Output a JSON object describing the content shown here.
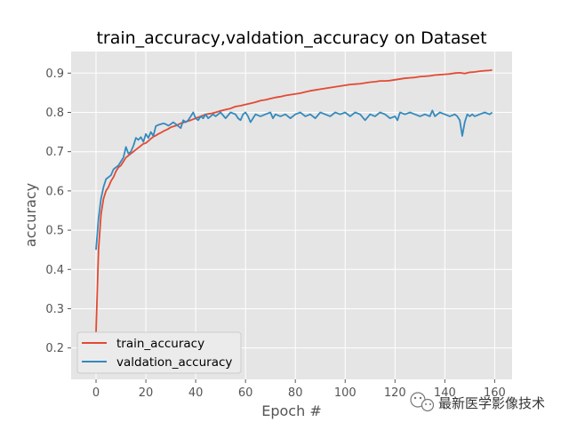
{
  "chart_data": {
    "type": "line",
    "title": "train_accuracy,valdation_accuracy on Dataset",
    "xlabel": "Epoch #",
    "ylabel": "accuracy",
    "xlim": [
      -10,
      167
    ],
    "ylim": [
      0.12,
      0.955
    ],
    "xticks": [
      0,
      20,
      40,
      60,
      80,
      100,
      120,
      140,
      160
    ],
    "xtick_labels": [
      "0",
      "20",
      "40",
      "60",
      "80",
      "100",
      "120",
      "140",
      "160"
    ],
    "yticks": [
      0.2,
      0.3,
      0.4,
      0.5,
      0.6,
      0.7,
      0.8,
      0.9
    ],
    "ytick_labels": [
      "0.2",
      "0.3",
      "0.4",
      "0.5",
      "0.6",
      "0.7",
      "0.8",
      "0.9"
    ],
    "grid": true,
    "legend_position": "lower-left",
    "colors": {
      "plot_background": "#e5e5e5",
      "grid": "#ffffff",
      "legend_background": "#ebebeb",
      "legend_border": "#cccccc"
    },
    "watermark": "最新医学影像技术",
    "series": [
      {
        "name": "train_accuracy",
        "color": "#e24a33",
        "points": [
          [
            0,
            0.24
          ],
          [
            1,
            0.45
          ],
          [
            2,
            0.54
          ],
          [
            3,
            0.58
          ],
          [
            4,
            0.6
          ],
          [
            5,
            0.61
          ],
          [
            6,
            0.625
          ],
          [
            7,
            0.635
          ],
          [
            8,
            0.65
          ],
          [
            9,
            0.66
          ],
          [
            10,
            0.665
          ],
          [
            11,
            0.675
          ],
          [
            12,
            0.685
          ],
          [
            13,
            0.69
          ],
          [
            14,
            0.695
          ],
          [
            15,
            0.7
          ],
          [
            16,
            0.705
          ],
          [
            17,
            0.71
          ],
          [
            18,
            0.715
          ],
          [
            19,
            0.72
          ],
          [
            20,
            0.722
          ],
          [
            21,
            0.727
          ],
          [
            22,
            0.733
          ],
          [
            23,
            0.738
          ],
          [
            24,
            0.741
          ],
          [
            25,
            0.745
          ],
          [
            26,
            0.748
          ],
          [
            27,
            0.752
          ],
          [
            28,
            0.755
          ],
          [
            29,
            0.758
          ],
          [
            30,
            0.762
          ],
          [
            32,
            0.766
          ],
          [
            34,
            0.772
          ],
          [
            36,
            0.776
          ],
          [
            38,
            0.78
          ],
          [
            40,
            0.785
          ],
          [
            42,
            0.79
          ],
          [
            44,
            0.795
          ],
          [
            46,
            0.797
          ],
          [
            48,
            0.8
          ],
          [
            50,
            0.804
          ],
          [
            52,
            0.807
          ],
          [
            54,
            0.81
          ],
          [
            56,
            0.815
          ],
          [
            58,
            0.817
          ],
          [
            60,
            0.82
          ],
          [
            62,
            0.823
          ],
          [
            64,
            0.826
          ],
          [
            66,
            0.83
          ],
          [
            68,
            0.832
          ],
          [
            70,
            0.835
          ],
          [
            72,
            0.838
          ],
          [
            74,
            0.84
          ],
          [
            76,
            0.843
          ],
          [
            78,
            0.845
          ],
          [
            80,
            0.847
          ],
          [
            82,
            0.849
          ],
          [
            84,
            0.852
          ],
          [
            86,
            0.855
          ],
          [
            88,
            0.857
          ],
          [
            90,
            0.859
          ],
          [
            92,
            0.861
          ],
          [
            94,
            0.863
          ],
          [
            96,
            0.865
          ],
          [
            98,
            0.867
          ],
          [
            100,
            0.869
          ],
          [
            102,
            0.871
          ],
          [
            104,
            0.872
          ],
          [
            106,
            0.873
          ],
          [
            108,
            0.875
          ],
          [
            110,
            0.877
          ],
          [
            112,
            0.878
          ],
          [
            114,
            0.88
          ],
          [
            116,
            0.88
          ],
          [
            118,
            0.881
          ],
          [
            120,
            0.883
          ],
          [
            122,
            0.885
          ],
          [
            124,
            0.887
          ],
          [
            126,
            0.888
          ],
          [
            128,
            0.889
          ],
          [
            130,
            0.891
          ],
          [
            132,
            0.892
          ],
          [
            134,
            0.893
          ],
          [
            136,
            0.895
          ],
          [
            138,
            0.896
          ],
          [
            140,
            0.897
          ],
          [
            142,
            0.898
          ],
          [
            144,
            0.9
          ],
          [
            146,
            0.901
          ],
          [
            148,
            0.899
          ],
          [
            150,
            0.902
          ],
          [
            152,
            0.903
          ],
          [
            154,
            0.905
          ],
          [
            156,
            0.906
          ],
          [
            158,
            0.907
          ],
          [
            159,
            0.908
          ]
        ]
      },
      {
        "name": "valdation_accuracy",
        "color": "#348abd",
        "points": [
          [
            0,
            0.45
          ],
          [
            1,
            0.53
          ],
          [
            2,
            0.58
          ],
          [
            3,
            0.61
          ],
          [
            4,
            0.63
          ],
          [
            5,
            0.635
          ],
          [
            6,
            0.64
          ],
          [
            7,
            0.655
          ],
          [
            8,
            0.66
          ],
          [
            9,
            0.665
          ],
          [
            10,
            0.675
          ],
          [
            11,
            0.685
          ],
          [
            12,
            0.712
          ],
          [
            13,
            0.695
          ],
          [
            14,
            0.7
          ],
          [
            15,
            0.715
          ],
          [
            16,
            0.735
          ],
          [
            17,
            0.73
          ],
          [
            18,
            0.737
          ],
          [
            19,
            0.725
          ],
          [
            20,
            0.745
          ],
          [
            21,
            0.735
          ],
          [
            22,
            0.75
          ],
          [
            23,
            0.74
          ],
          [
            24,
            0.765
          ],
          [
            25,
            0.768
          ],
          [
            26,
            0.77
          ],
          [
            27,
            0.772
          ],
          [
            28,
            0.77
          ],
          [
            29,
            0.766
          ],
          [
            30,
            0.77
          ],
          [
            31,
            0.775
          ],
          [
            32,
            0.77
          ],
          [
            33,
            0.765
          ],
          [
            34,
            0.76
          ],
          [
            35,
            0.78
          ],
          [
            36,
            0.775
          ],
          [
            37,
            0.78
          ],
          [
            38,
            0.79
          ],
          [
            39,
            0.8
          ],
          [
            40,
            0.785
          ],
          [
            41,
            0.78
          ],
          [
            42,
            0.79
          ],
          [
            43,
            0.785
          ],
          [
            44,
            0.795
          ],
          [
            45,
            0.785
          ],
          [
            46,
            0.79
          ],
          [
            47,
            0.795
          ],
          [
            48,
            0.79
          ],
          [
            50,
            0.8
          ],
          [
            52,
            0.785
          ],
          [
            54,
            0.8
          ],
          [
            56,
            0.795
          ],
          [
            57,
            0.785
          ],
          [
            58,
            0.78
          ],
          [
            59,
            0.795
          ],
          [
            60,
            0.8
          ],
          [
            61,
            0.79
          ],
          [
            62,
            0.775
          ],
          [
            64,
            0.795
          ],
          [
            66,
            0.79
          ],
          [
            68,
            0.795
          ],
          [
            70,
            0.8
          ],
          [
            71,
            0.785
          ],
          [
            72,
            0.795
          ],
          [
            74,
            0.79
          ],
          [
            76,
            0.795
          ],
          [
            78,
            0.785
          ],
          [
            80,
            0.795
          ],
          [
            82,
            0.8
          ],
          [
            84,
            0.79
          ],
          [
            86,
            0.795
          ],
          [
            88,
            0.785
          ],
          [
            90,
            0.8
          ],
          [
            92,
            0.795
          ],
          [
            94,
            0.79
          ],
          [
            96,
            0.8
          ],
          [
            98,
            0.795
          ],
          [
            100,
            0.8
          ],
          [
            102,
            0.79
          ],
          [
            104,
            0.8
          ],
          [
            106,
            0.795
          ],
          [
            108,
            0.78
          ],
          [
            110,
            0.795
          ],
          [
            112,
            0.79
          ],
          [
            114,
            0.8
          ],
          [
            116,
            0.795
          ],
          [
            118,
            0.785
          ],
          [
            120,
            0.79
          ],
          [
            121,
            0.78
          ],
          [
            122,
            0.8
          ],
          [
            124,
            0.795
          ],
          [
            126,
            0.8
          ],
          [
            128,
            0.795
          ],
          [
            130,
            0.79
          ],
          [
            132,
            0.795
          ],
          [
            134,
            0.79
          ],
          [
            135,
            0.805
          ],
          [
            136,
            0.79
          ],
          [
            138,
            0.8
          ],
          [
            140,
            0.795
          ],
          [
            142,
            0.79
          ],
          [
            144,
            0.795
          ],
          [
            145,
            0.79
          ],
          [
            146,
            0.78
          ],
          [
            147,
            0.74
          ],
          [
            148,
            0.775
          ],
          [
            149,
            0.795
          ],
          [
            150,
            0.79
          ],
          [
            151,
            0.795
          ],
          [
            152,
            0.79
          ],
          [
            154,
            0.795
          ],
          [
            156,
            0.8
          ],
          [
            158,
            0.795
          ],
          [
            159,
            0.8
          ]
        ]
      }
    ]
  }
}
